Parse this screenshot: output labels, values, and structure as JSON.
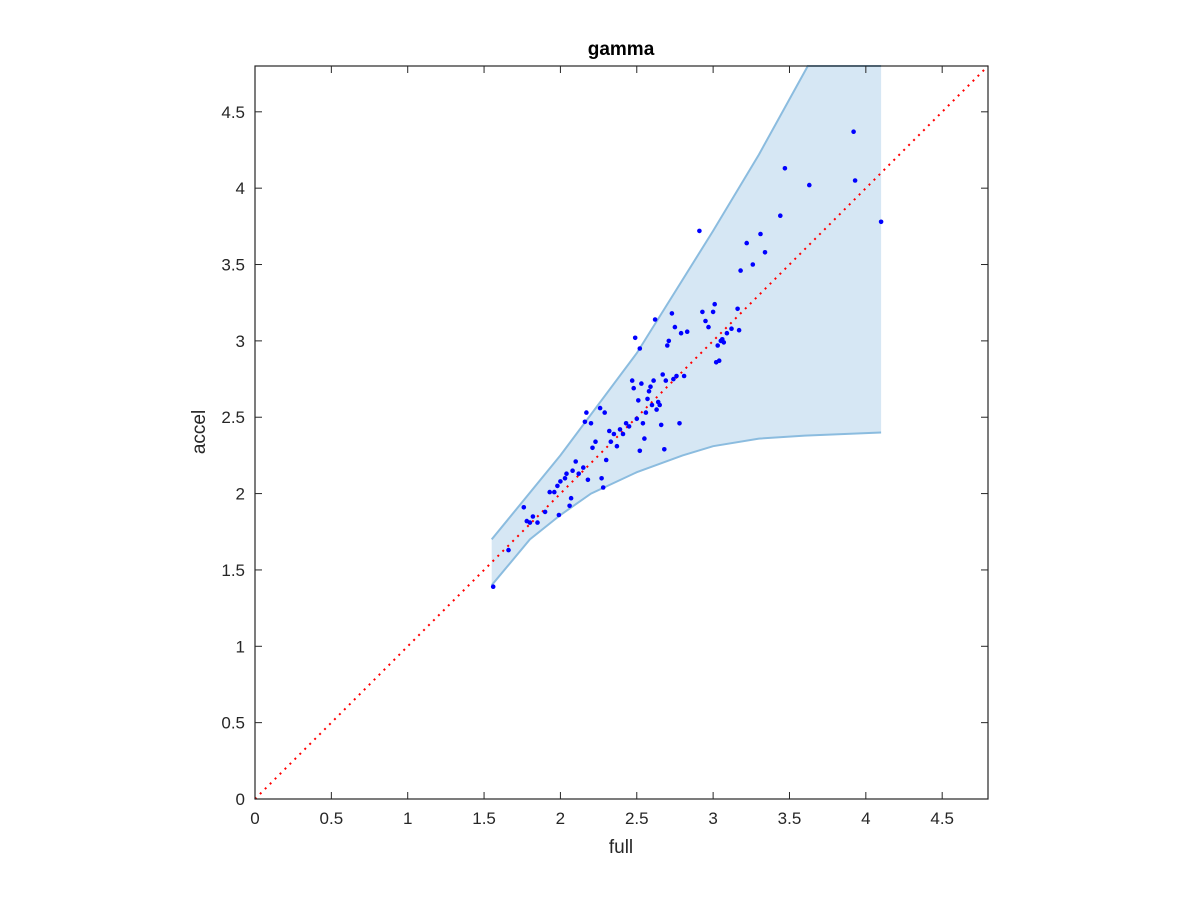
{
  "chart_data": {
    "type": "scatter",
    "title": "gamma",
    "xlabel": "full",
    "ylabel": "accel",
    "xlim": [
      0,
      4.8
    ],
    "ylim": [
      0,
      4.8
    ],
    "xticks": [
      0,
      0.5,
      1,
      1.5,
      2,
      2.5,
      3,
      3.5,
      4,
      4.5
    ],
    "yticks": [
      0,
      0.5,
      1,
      1.5,
      2,
      2.5,
      3,
      3.5,
      4,
      4.5
    ],
    "grid": false,
    "legend": "none",
    "colors": {
      "points": "#0000ff",
      "reference_line": "#ff0000",
      "band_fill": "#d6e7f4",
      "band_edge": "#8bbcdf",
      "axes": "#262626"
    },
    "reference_line": {
      "style": "dotted",
      "from": [
        0,
        0
      ],
      "to": [
        4.8,
        4.8
      ]
    },
    "band": {
      "upper": [
        [
          1.55,
          1.7
        ],
        [
          2.0,
          2.25
        ],
        [
          2.5,
          2.92
        ],
        [
          3.0,
          3.72
        ],
        [
          3.3,
          4.22
        ],
        [
          3.62,
          4.8
        ],
        [
          4.1,
          4.8
        ]
      ],
      "lower": [
        [
          1.55,
          1.4
        ],
        [
          1.8,
          1.7
        ],
        [
          2.0,
          1.86
        ],
        [
          2.2,
          2.0
        ],
        [
          2.5,
          2.14
        ],
        [
          2.8,
          2.25
        ],
        [
          3.0,
          2.31
        ],
        [
          3.3,
          2.36
        ],
        [
          3.6,
          2.38
        ],
        [
          4.1,
          2.4
        ]
      ]
    },
    "series": [
      {
        "points": [
          [
            1.56,
            1.39
          ],
          [
            1.66,
            1.63
          ],
          [
            1.76,
            1.91
          ],
          [
            1.78,
            1.82
          ],
          [
            1.8,
            1.81
          ],
          [
            1.82,
            1.85
          ],
          [
            1.85,
            1.81
          ],
          [
            1.9,
            1.88
          ],
          [
            1.93,
            2.01
          ],
          [
            1.96,
            2.01
          ],
          [
            1.98,
            2.05
          ],
          [
            1.99,
            1.86
          ],
          [
            2.0,
            2.08
          ],
          [
            2.03,
            2.1
          ],
          [
            2.04,
            2.13
          ],
          [
            2.06,
            1.92
          ],
          [
            2.07,
            1.97
          ],
          [
            2.08,
            2.15
          ],
          [
            2.1,
            2.21
          ],
          [
            2.12,
            2.13
          ],
          [
            2.15,
            2.17
          ],
          [
            2.16,
            2.47
          ],
          [
            2.17,
            2.53
          ],
          [
            2.18,
            2.09
          ],
          [
            2.2,
            2.46
          ],
          [
            2.21,
            2.3
          ],
          [
            2.23,
            2.34
          ],
          [
            2.26,
            2.56
          ],
          [
            2.27,
            2.1
          ],
          [
            2.28,
            2.04
          ],
          [
            2.29,
            2.53
          ],
          [
            2.3,
            2.22
          ],
          [
            2.32,
            2.41
          ],
          [
            2.33,
            2.34
          ],
          [
            2.35,
            2.39
          ],
          [
            2.37,
            2.31
          ],
          [
            2.39,
            2.42
          ],
          [
            2.41,
            2.39
          ],
          [
            2.43,
            2.46
          ],
          [
            2.45,
            2.44
          ],
          [
            2.47,
            2.74
          ],
          [
            2.48,
            2.69
          ],
          [
            2.49,
            3.02
          ],
          [
            2.5,
            2.49
          ],
          [
            2.51,
            2.61
          ],
          [
            2.52,
            2.95
          ],
          [
            2.52,
            2.28
          ],
          [
            2.53,
            2.72
          ],
          [
            2.54,
            2.46
          ],
          [
            2.55,
            2.36
          ],
          [
            2.56,
            2.53
          ],
          [
            2.57,
            2.62
          ],
          [
            2.58,
            2.67
          ],
          [
            2.59,
            2.7
          ],
          [
            2.6,
            2.58
          ],
          [
            2.61,
            2.74
          ],
          [
            2.62,
            3.14
          ],
          [
            2.63,
            2.55
          ],
          [
            2.64,
            2.6
          ],
          [
            2.65,
            2.58
          ],
          [
            2.66,
            2.45
          ],
          [
            2.67,
            2.78
          ],
          [
            2.68,
            2.29
          ],
          [
            2.69,
            2.74
          ],
          [
            2.7,
            2.97
          ],
          [
            2.71,
            3.0
          ],
          [
            2.73,
            3.18
          ],
          [
            2.74,
            2.75
          ],
          [
            2.75,
            3.09
          ],
          [
            2.76,
            2.77
          ],
          [
            2.78,
            2.46
          ],
          [
            2.79,
            3.05
          ],
          [
            2.81,
            2.77
          ],
          [
            2.83,
            3.06
          ],
          [
            2.91,
            3.72
          ],
          [
            2.93,
            3.19
          ],
          [
            2.95,
            3.13
          ],
          [
            2.97,
            3.09
          ],
          [
            3.0,
            3.19
          ],
          [
            3.01,
            3.24
          ],
          [
            3.02,
            2.86
          ],
          [
            3.03,
            2.97
          ],
          [
            3.04,
            2.87
          ],
          [
            3.05,
            3.0
          ],
          [
            3.06,
            3.01
          ],
          [
            3.07,
            2.99
          ],
          [
            3.09,
            3.05
          ],
          [
            3.12,
            3.08
          ],
          [
            3.16,
            3.21
          ],
          [
            3.17,
            3.07
          ],
          [
            3.18,
            3.46
          ],
          [
            3.22,
            3.64
          ],
          [
            3.26,
            3.5
          ],
          [
            3.31,
            3.7
          ],
          [
            3.34,
            3.58
          ],
          [
            3.44,
            3.82
          ],
          [
            3.47,
            4.13
          ],
          [
            3.63,
            4.02
          ],
          [
            3.92,
            4.37
          ],
          [
            3.93,
            4.05
          ],
          [
            4.1,
            3.78
          ]
        ]
      }
    ]
  }
}
